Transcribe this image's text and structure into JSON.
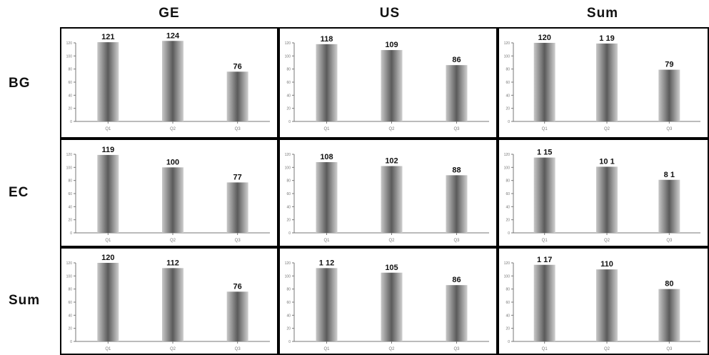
{
  "column_headers": [
    "GE",
    "US",
    "Sum"
  ],
  "row_headers": [
    "BG",
    "EC",
    "Sum"
  ],
  "colors": {
    "bar_dark": "#555555",
    "bar_light": "#cfcfcf",
    "frame": "#000000",
    "axis": "#777777"
  },
  "chart_data": [
    {
      "type": "bar",
      "row": "BG",
      "column": "GE",
      "categories": [
        "Q1",
        "Q2",
        "Q3"
      ],
      "values": [
        121,
        124,
        76
      ],
      "labels": [
        "121",
        "124",
        "76"
      ],
      "ylim": [
        0,
        120
      ],
      "yticks": [
        "0",
        "20",
        "40",
        "60",
        "80",
        "100",
        "120"
      ]
    },
    {
      "type": "bar",
      "row": "BG",
      "column": "US",
      "categories": [
        "Q1",
        "Q2",
        "Q3"
      ],
      "values": [
        118,
        109,
        86
      ],
      "labels": [
        "118",
        "109",
        "86"
      ],
      "ylim": [
        0,
        120
      ],
      "yticks": [
        "0",
        "20",
        "40",
        "60",
        "80",
        "100",
        "120"
      ]
    },
    {
      "type": "bar",
      "row": "BG",
      "column": "Sum",
      "categories": [
        "Q1",
        "Q2",
        "Q3"
      ],
      "values": [
        120,
        119,
        79
      ],
      "labels": [
        "120",
        "1 19",
        "79"
      ],
      "ylim": [
        0,
        120
      ],
      "yticks": [
        "0",
        "20",
        "40",
        "60",
        "80",
        "100",
        "120"
      ]
    },
    {
      "type": "bar",
      "row": "EC",
      "column": "GE",
      "categories": [
        "Q1",
        "Q2",
        "Q3"
      ],
      "values": [
        119,
        100,
        77
      ],
      "labels": [
        "119",
        "100",
        "77"
      ],
      "ylim": [
        0,
        120
      ],
      "yticks": [
        "0",
        "20",
        "40",
        "60",
        "80",
        "100",
        "120"
      ]
    },
    {
      "type": "bar",
      "row": "EC",
      "column": "US",
      "categories": [
        "Q1",
        "Q2",
        "Q3"
      ],
      "values": [
        108,
        102,
        88
      ],
      "labels": [
        "108",
        "102",
        "88"
      ],
      "ylim": [
        0,
        120
      ],
      "yticks": [
        "0",
        "20",
        "40",
        "60",
        "80",
        "100",
        "120"
      ]
    },
    {
      "type": "bar",
      "row": "EC",
      "column": "Sum",
      "categories": [
        "Q1",
        "Q2",
        "Q3"
      ],
      "values": [
        115,
        101,
        81
      ],
      "labels": [
        "1 15",
        "10 1",
        "8 1"
      ],
      "ylim": [
        0,
        120
      ],
      "yticks": [
        "0",
        "20",
        "40",
        "60",
        "80",
        "100",
        "120"
      ]
    },
    {
      "type": "bar",
      "row": "Sum",
      "column": "GE",
      "categories": [
        "Q1",
        "Q2",
        "Q3"
      ],
      "values": [
        120,
        112,
        76
      ],
      "labels": [
        "120",
        "112",
        "76"
      ],
      "ylim": [
        0,
        120
      ],
      "yticks": [
        "0",
        "20",
        "40",
        "60",
        "80",
        "100",
        "120"
      ]
    },
    {
      "type": "bar",
      "row": "Sum",
      "column": "US",
      "categories": [
        "Q1",
        "Q2",
        "Q3"
      ],
      "values": [
        112,
        105,
        86
      ],
      "labels": [
        "1 12",
        "105",
        "86"
      ],
      "ylim": [
        0,
        120
      ],
      "yticks": [
        "0",
        "20",
        "40",
        "60",
        "80",
        "100",
        "120"
      ]
    },
    {
      "type": "bar",
      "row": "Sum",
      "column": "Sum",
      "categories": [
        "Q1",
        "Q2",
        "Q3"
      ],
      "values": [
        117,
        110,
        80
      ],
      "labels": [
        "1 17",
        "110",
        "80"
      ],
      "ylim": [
        0,
        120
      ],
      "yticks": [
        "0",
        "20",
        "40",
        "60",
        "80",
        "100",
        "120"
      ]
    }
  ]
}
